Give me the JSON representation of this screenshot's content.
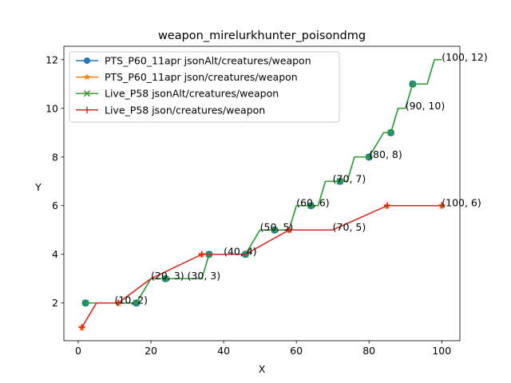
{
  "chart_data": {
    "type": "line",
    "title": "weapon_mirelurkhunter_poisondmg",
    "xlabel": "X",
    "ylabel": "Y",
    "xlim": [
      -3.95,
      105.0
    ],
    "ylim": [
      0.45,
      12.55
    ],
    "xticks": [
      0,
      20,
      40,
      60,
      80,
      100
    ],
    "yticks": [
      2,
      4,
      6,
      8,
      10,
      12
    ],
    "grid": false,
    "legend_position": "upper-left",
    "series": [
      {
        "name": "PTS_P60_11apr jsonAlt/creatures/weapon",
        "color": "#1f77b4",
        "marker": "circle",
        "x": [
          2,
          16,
          18,
          20,
          24,
          34,
          36,
          46,
          48,
          50,
          54,
          58,
          60,
          64,
          66,
          68,
          72,
          74,
          76,
          80,
          82,
          84,
          86,
          88,
          90,
          92,
          96,
          98,
          100
        ],
        "y": [
          2,
          2,
          2.5,
          3,
          3,
          3,
          4,
          4,
          4.5,
          5,
          5,
          5,
          6,
          6,
          6,
          7,
          7,
          7,
          8,
          8,
          8.5,
          9,
          9,
          10,
          10,
          11,
          11,
          12,
          12
        ],
        "markers_x": [
          2,
          16,
          24,
          36,
          46,
          54,
          64,
          72,
          80,
          86,
          92
        ],
        "markers_y": [
          2,
          2,
          3,
          4,
          4,
          5,
          6,
          7,
          8,
          9,
          11
        ]
      },
      {
        "name": "PTS_P60_11apr json/creatures/weapon",
        "color": "#ff7f0e",
        "marker": "star",
        "x": [
          1,
          5,
          11,
          20,
          34,
          46,
          58,
          70,
          85,
          100
        ],
        "y": [
          1,
          2,
          2,
          3,
          4,
          4,
          5,
          5,
          6,
          6
        ],
        "markers_x": [
          1,
          11,
          34,
          58,
          85,
          100
        ],
        "markers_y": [
          1,
          2,
          4,
          5,
          6,
          6
        ]
      },
      {
        "name": "Live_P58 jsonAlt/creatures/weapon",
        "color": "#2ca02c",
        "marker": "x",
        "x": [
          2,
          16,
          18,
          20,
          24,
          34,
          36,
          46,
          48,
          50,
          54,
          58,
          60,
          64,
          66,
          68,
          72,
          74,
          76,
          80,
          82,
          84,
          86,
          88,
          90,
          92,
          96,
          98,
          100
        ],
        "y": [
          2,
          2,
          2.5,
          3,
          3,
          3,
          4,
          4,
          4.5,
          5,
          5,
          5,
          6,
          6,
          6,
          7,
          7,
          7,
          8,
          8,
          8.5,
          9,
          9,
          10,
          10,
          11,
          11,
          12,
          12
        ],
        "markers_x": [
          2,
          16,
          24,
          36,
          46,
          54,
          64,
          72,
          80,
          86,
          92
        ],
        "markers_y": [
          2,
          2,
          3,
          4,
          4,
          5,
          6,
          7,
          8,
          9,
          11
        ]
      },
      {
        "name": "Live_P58 json/creatures/weapon",
        "color": "#d62728",
        "marker": "plus",
        "x": [
          1,
          5,
          11,
          20,
          34,
          46,
          58,
          70,
          85,
          100
        ],
        "y": [
          1,
          2,
          2,
          3,
          4,
          4,
          5,
          5,
          6,
          6
        ],
        "markers_x": [
          1,
          11,
          34,
          58,
          85,
          100
        ],
        "markers_y": [
          1,
          2,
          4,
          5,
          6,
          6
        ]
      }
    ],
    "annotations": [
      {
        "text": "(10, 2)",
        "x": 10,
        "y": 2
      },
      {
        "text": "(20, 3)",
        "x": 20,
        "y": 3
      },
      {
        "text": "(30, 3)",
        "x": 30,
        "y": 3
      },
      {
        "text": "(40, 4)",
        "x": 40,
        "y": 4
      },
      {
        "text": "(50, 5)",
        "x": 50,
        "y": 5
      },
      {
        "text": "(60, 6)",
        "x": 60,
        "y": 6
      },
      {
        "text": "(70, 7)",
        "x": 70,
        "y": 7
      },
      {
        "text": "(70, 5)",
        "x": 70,
        "y": 5
      },
      {
        "text": "(80, 8)",
        "x": 80,
        "y": 8
      },
      {
        "text": "(90, 10)",
        "x": 90,
        "y": 10
      },
      {
        "text": "(100, 12)",
        "x": 100,
        "y": 12
      },
      {
        "text": "(100, 6)",
        "x": 100,
        "y": 6
      }
    ]
  }
}
